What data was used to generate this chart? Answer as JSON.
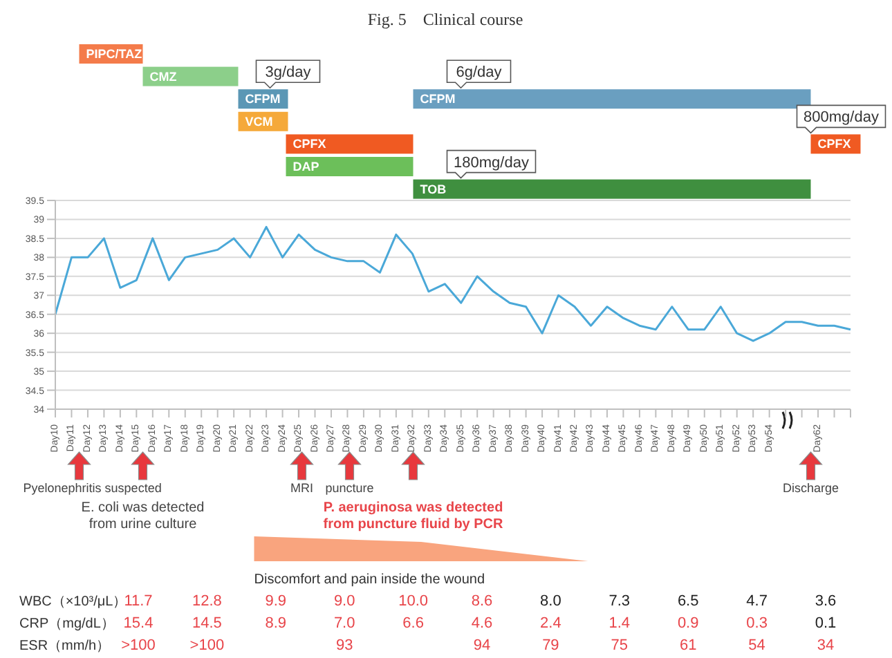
{
  "chart_data": {
    "type": "line",
    "title": "Fig. 5　Clinical course",
    "categories": [
      "Day10",
      "Day11",
      "Day12",
      "Day13",
      "Day14",
      "Day15",
      "Day16",
      "Day17",
      "Day18",
      "Day19",
      "Day20",
      "Day21",
      "Day22",
      "Day23",
      "Day24",
      "Day25",
      "Day26",
      "Day27",
      "Day28",
      "Day29",
      "Day30",
      "Day31",
      "Day32",
      "Day33",
      "Day34",
      "Day35",
      "Day36",
      "Day37",
      "Day38",
      "Day39",
      "Day40",
      "Day41",
      "Day42",
      "Day43",
      "Day44",
      "Day45",
      "Day46",
      "Day47",
      "Day48",
      "Day49",
      "Day50",
      "Day51",
      "Day52",
      "Day53",
      "Day54",
      null,
      null,
      "Day62",
      null,
      null
    ],
    "values": [
      36.5,
      38.0,
      38.0,
      38.5,
      37.2,
      37.4,
      38.5,
      37.4,
      38.0,
      38.1,
      38.2,
      38.5,
      38.0,
      38.8,
      38.0,
      38.6,
      38.2,
      38.0,
      37.9,
      37.9,
      37.6,
      38.6,
      38.1,
      37.1,
      37.3,
      36.8,
      37.5,
      37.1,
      36.8,
      36.7,
      36.0,
      37.0,
      36.7,
      36.2,
      36.7,
      36.4,
      36.2,
      36.1,
      36.7,
      36.1,
      36.1,
      36.7,
      36.0,
      35.8,
      36.0,
      36.3,
      36.3,
      36.2,
      36.2,
      36.1
    ],
    "color": "#4aa8d8",
    "ylim": [
      34,
      39.5
    ],
    "yticks": [
      34,
      34.5,
      35,
      35.5,
      36,
      36.5,
      37,
      37.5,
      38,
      38.5,
      39,
      39.5
    ],
    "grid": "y",
    "annotations": [
      "PIPC/TAZ",
      "CMZ",
      "CFPM",
      "VCM",
      "CPFX",
      "DAP",
      "CFPM",
      "TOB",
      "CPFX",
      "3g/day",
      "6g/day",
      "180mg/day",
      "800mg/day",
      "Pyelonephritis suspected",
      "E. coli was detected from urine culture",
      "MRI",
      "puncture",
      "P. aeruginosa was detected from puncture fluid by PCR",
      "Discharge",
      "Discomfort and pain inside the wound",
      "WBC（×10³/μL）",
      "CRP（mg/dL）",
      "ESR（mm/h）",
      "11.7",
      "12.8",
      "9.9",
      "9.0",
      "10.0",
      "8.6",
      "8.0",
      "7.3",
      "6.5",
      "4.7",
      "3.6",
      "15.4",
      "14.5",
      "8.9",
      "7.0",
      "6.6",
      "4.6",
      "2.4",
      "1.4",
      "0.9",
      "0.3",
      "0.1",
      ">100",
      ">100",
      "93",
      "94",
      "79",
      "75",
      "61",
      "54",
      "34"
    ]
  }
}
